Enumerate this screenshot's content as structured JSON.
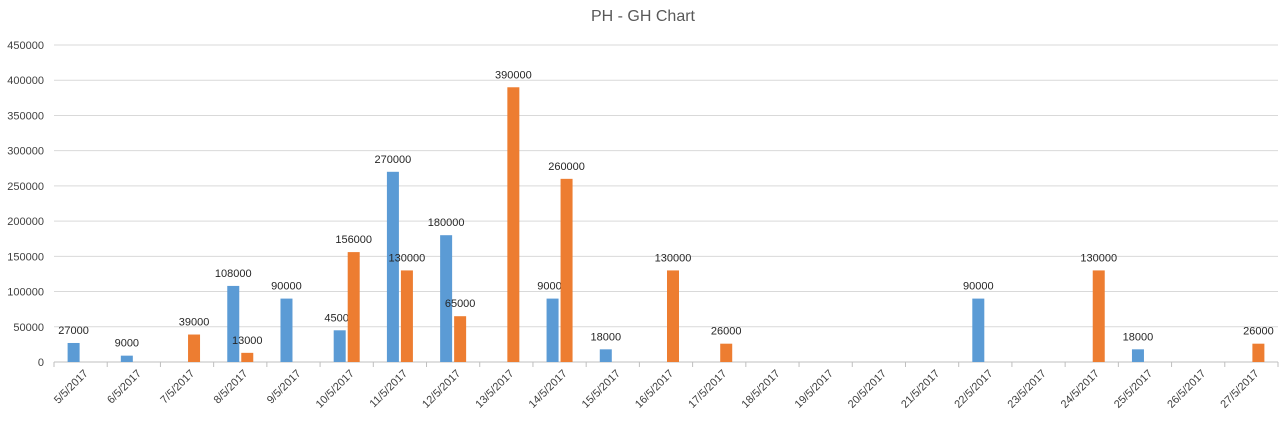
{
  "chart_data": {
    "type": "bar",
    "title": "PH - GH Chart",
    "xlabel": "",
    "ylabel": "",
    "ylim": [
      0,
      450000
    ],
    "yticks": [
      0,
      50000,
      100000,
      150000,
      200000,
      250000,
      300000,
      350000,
      400000,
      450000
    ],
    "ytick_labels": [
      "0",
      "50000",
      "100000",
      "150000",
      "200000",
      "250000",
      "300000",
      "350000",
      "400000",
      "450000"
    ],
    "grid": true,
    "legend": "none",
    "categories": [
      "5/5/2017",
      "6/5/2017",
      "7/5/2017",
      "8/5/2017",
      "9/5/2017",
      "10/5/2017",
      "11/5/2017",
      "12/5/2017",
      "13/5/2017",
      "14/5/2017",
      "15/5/2017",
      "16/5/2017",
      "17/5/2017",
      "18/5/2017",
      "19/5/2017",
      "20/5/2017",
      "21/5/2017",
      "22/5/2017",
      "23/5/2017",
      "24/5/2017",
      "25/5/2017",
      "26/5/2017",
      "27/5/2017"
    ],
    "series": [
      {
        "color": "#5B9BD5",
        "values": [
          27000,
          9000,
          null,
          108000,
          90000,
          45000,
          270000,
          180000,
          null,
          90000,
          18000,
          null,
          null,
          null,
          null,
          null,
          null,
          90000,
          null,
          null,
          18000,
          null,
          null
        ],
        "labels": [
          "27000",
          "9000",
          null,
          "108000",
          "90000",
          "45000",
          "270000",
          "180000",
          null,
          "90000",
          "18000",
          null,
          null,
          null,
          null,
          null,
          null,
          "90000",
          null,
          null,
          "18000",
          null,
          null
        ]
      },
      {
        "color": "#ED7D31",
        "values": [
          null,
          null,
          39000,
          13000,
          null,
          156000,
          130000,
          65000,
          390000,
          260000,
          null,
          130000,
          26000,
          null,
          null,
          null,
          null,
          null,
          null,
          130000,
          null,
          null,
          26000
        ],
        "labels": [
          null,
          null,
          "39000",
          "13000",
          null,
          "156000",
          "130000",
          "65000",
          "390000",
          "260000",
          null,
          "130000",
          "26000",
          null,
          null,
          null,
          null,
          null,
          null,
          "130000",
          null,
          null,
          "26000"
        ]
      }
    ]
  }
}
